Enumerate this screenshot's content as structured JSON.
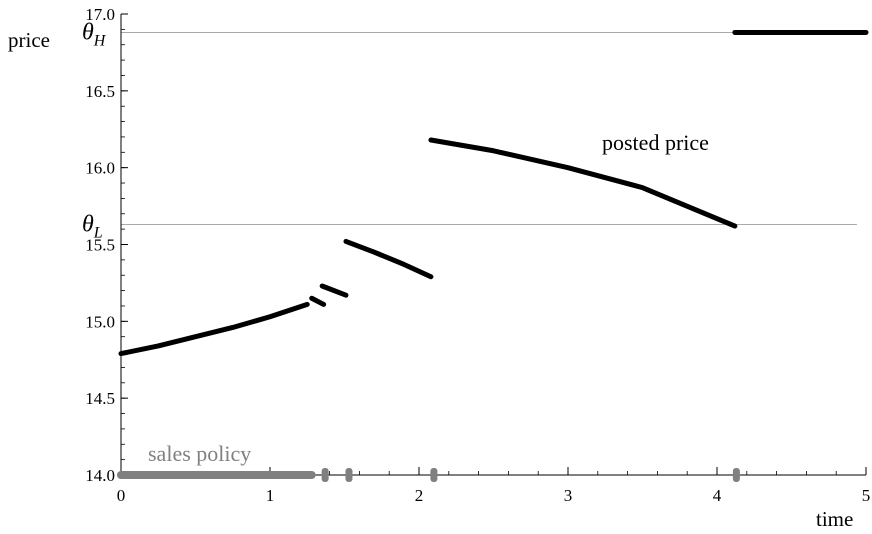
{
  "chart_data": {
    "type": "line",
    "xlabel": "time",
    "ylabel": "price",
    "xlim": [
      0,
      5
    ],
    "ylim": [
      14.0,
      17.0
    ],
    "x_ticks": [
      0,
      1,
      2,
      3,
      4,
      5
    ],
    "y_ticks": [
      14.0,
      14.5,
      15.0,
      15.5,
      16.0,
      16.5,
      17.0
    ],
    "reference_lines": [
      {
        "label_main": "θ",
        "label_sub": "H",
        "y": 16.88
      },
      {
        "label_main": "θ",
        "label_sub": "L",
        "y": 15.63
      }
    ],
    "annotations": [
      {
        "text": "posted price",
        "color": "#000000"
      },
      {
        "text": "sales policy",
        "color": "#808080"
      }
    ],
    "series": [
      {
        "name": "posted price",
        "color": "#000000",
        "segments": [
          {
            "x": [
              0.0,
              0.25,
              0.5,
              0.75,
              1.0,
              1.25
            ],
            "y": [
              14.79,
              14.84,
              14.9,
              14.96,
              15.03,
              15.11
            ]
          },
          {
            "x": [
              1.28,
              1.36
            ],
            "y": [
              15.15,
              15.11
            ]
          },
          {
            "x": [
              1.35,
              1.51
            ],
            "y": [
              15.23,
              15.17
            ]
          },
          {
            "x": [
              1.51,
              1.7,
              1.9,
              2.08
            ],
            "y": [
              15.52,
              15.45,
              15.37,
              15.29
            ]
          },
          {
            "x": [
              2.08,
              2.5,
              3.0,
              3.5,
              4.12
            ],
            "y": [
              16.18,
              16.11,
              16.0,
              15.87,
              15.62
            ]
          },
          {
            "x": [
              4.12,
              5.0
            ],
            "y": [
              16.88,
              16.88
            ]
          }
        ]
      },
      {
        "name": "sales policy",
        "color": "#808080",
        "segments": [
          {
            "x": [
              0.0,
              1.28
            ],
            "y": [
              14.0,
              14.0
            ]
          }
        ],
        "points": [
          1.37,
          1.53,
          2.1,
          4.13
        ]
      }
    ]
  }
}
